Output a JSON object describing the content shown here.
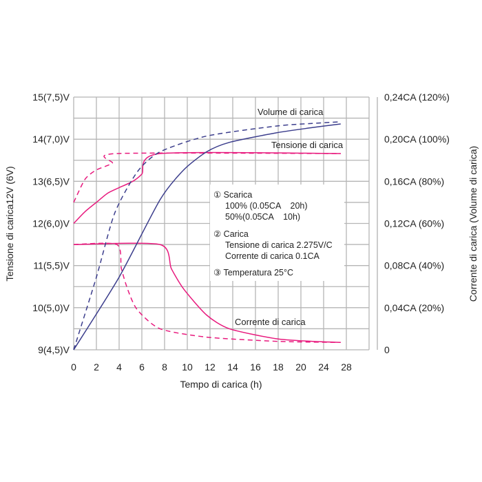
{
  "chart_data": {
    "type": "line",
    "xlabel": "Tempo di carica (h)",
    "ylabel_left": "Tensione di carica12V (6V)",
    "ylabel_right": "Corrente di carica (Volume di carica)",
    "x_ticks": [
      "0",
      "2",
      "4",
      "6",
      "8",
      "10",
      "12",
      "14",
      "16",
      "18",
      "20",
      "24",
      "28"
    ],
    "x_tick_values": [
      0,
      2,
      4,
      6,
      8,
      10,
      12,
      14,
      16,
      18,
      20,
      24,
      28
    ],
    "y_left_ticks": [
      "15(7,5)V",
      "14(7,0)V",
      "13(6,5)V",
      "12(6,0)V",
      "11(5,5)V",
      "10(5,0)V",
      "9(4,5)V"
    ],
    "y_left_values": [
      15,
      14,
      13,
      12,
      11,
      10,
      9
    ],
    "y_left_range": [
      9,
      15
    ],
    "y_right_ticks": [
      "0,24CA (120%)",
      "0,20CA (100%)",
      "0,16CA (80%)",
      "0,12CA (60%)",
      "0,08CA (40%)",
      "0,04CA (20%)",
      "0"
    ],
    "y_right_values": [
      0.24,
      0.2,
      0.16,
      0.12,
      0.08,
      0.04,
      0
    ],
    "y_right_range": [
      0,
      0.24
    ],
    "grid": true,
    "colors": {
      "voltage": "#e8197d",
      "current": "#e8197d",
      "volume": "#3b3d8c",
      "grid": "#b5b5b5"
    },
    "series": [
      {
        "name": "Tensione di carica (100%)",
        "axis": "left",
        "style": "solid",
        "color": "voltage",
        "x": [
          0,
          1,
          2,
          3,
          4,
          5.2,
          6,
          7.6,
          27
        ],
        "y": [
          12.0,
          12.28,
          12.5,
          12.72,
          12.85,
          13.0,
          13.17,
          13.66,
          13.66
        ]
      },
      {
        "name": "Tensione di carica (50%)",
        "axis": "left",
        "style": "dashed",
        "color": "voltage",
        "x": [
          0,
          1,
          2,
          3.4,
          3.8,
          27
        ],
        "y": [
          12.5,
          13.05,
          13.27,
          13.43,
          13.66,
          13.66
        ]
      },
      {
        "name": "Corrente di carica (100%)",
        "axis": "right",
        "style": "solid",
        "color": "current",
        "x": [
          0,
          7.6,
          8.6,
          9.7,
          11.7,
          13.7,
          17.8,
          22,
          27
        ],
        "y": [
          0.1,
          0.1,
          0.077,
          0.0575,
          0.033,
          0.02,
          0.0105,
          0.008,
          0.007
        ]
      },
      {
        "name": "Corrente di carica (50%)",
        "axis": "right",
        "style": "dashed",
        "color": "current",
        "x": [
          0,
          3.8,
          4.2,
          4.8,
          5.6,
          7.6,
          11.7,
          18,
          27
        ],
        "y": [
          0.1,
          0.1,
          0.077,
          0.056,
          0.038,
          0.02,
          0.012,
          0.008,
          0.007
        ]
      },
      {
        "name": "Volume di carica (100%)",
        "axis": "right",
        "style": "solid",
        "color": "volume",
        "x": [
          0,
          4,
          7.6,
          9.7,
          11.7,
          13.7,
          17.8,
          22,
          27
        ],
        "y": [
          0,
          0.069,
          0.1425,
          0.171,
          0.188,
          0.197,
          0.206,
          0.211,
          0.2145
        ]
      },
      {
        "name": "Volume di carica (50%)",
        "axis": "right",
        "style": "dashed",
        "color": "volume",
        "x": [
          0,
          2,
          3.6,
          5.6,
          7.6,
          11.7,
          17.8,
          22,
          27
        ],
        "y": [
          0,
          0.069,
          0.1295,
          0.169,
          0.188,
          0.203,
          0.2125,
          0.215,
          0.2165
        ]
      }
    ],
    "annotations": {
      "volume": "Volume di carica",
      "voltage": "Tensione di carica",
      "current": "Corrente di carica"
    },
    "legend": {
      "placement": "center",
      "lines": [
        "① Scarica",
        "100% (0.05CA    20h)",
        "50%(0.05CA    10h)",
        "② Carica",
        "Tensione di carica 2.275V/C",
        "Corrente di carica 0.1CA",
        "③ Temperatura 25°C"
      ]
    }
  }
}
